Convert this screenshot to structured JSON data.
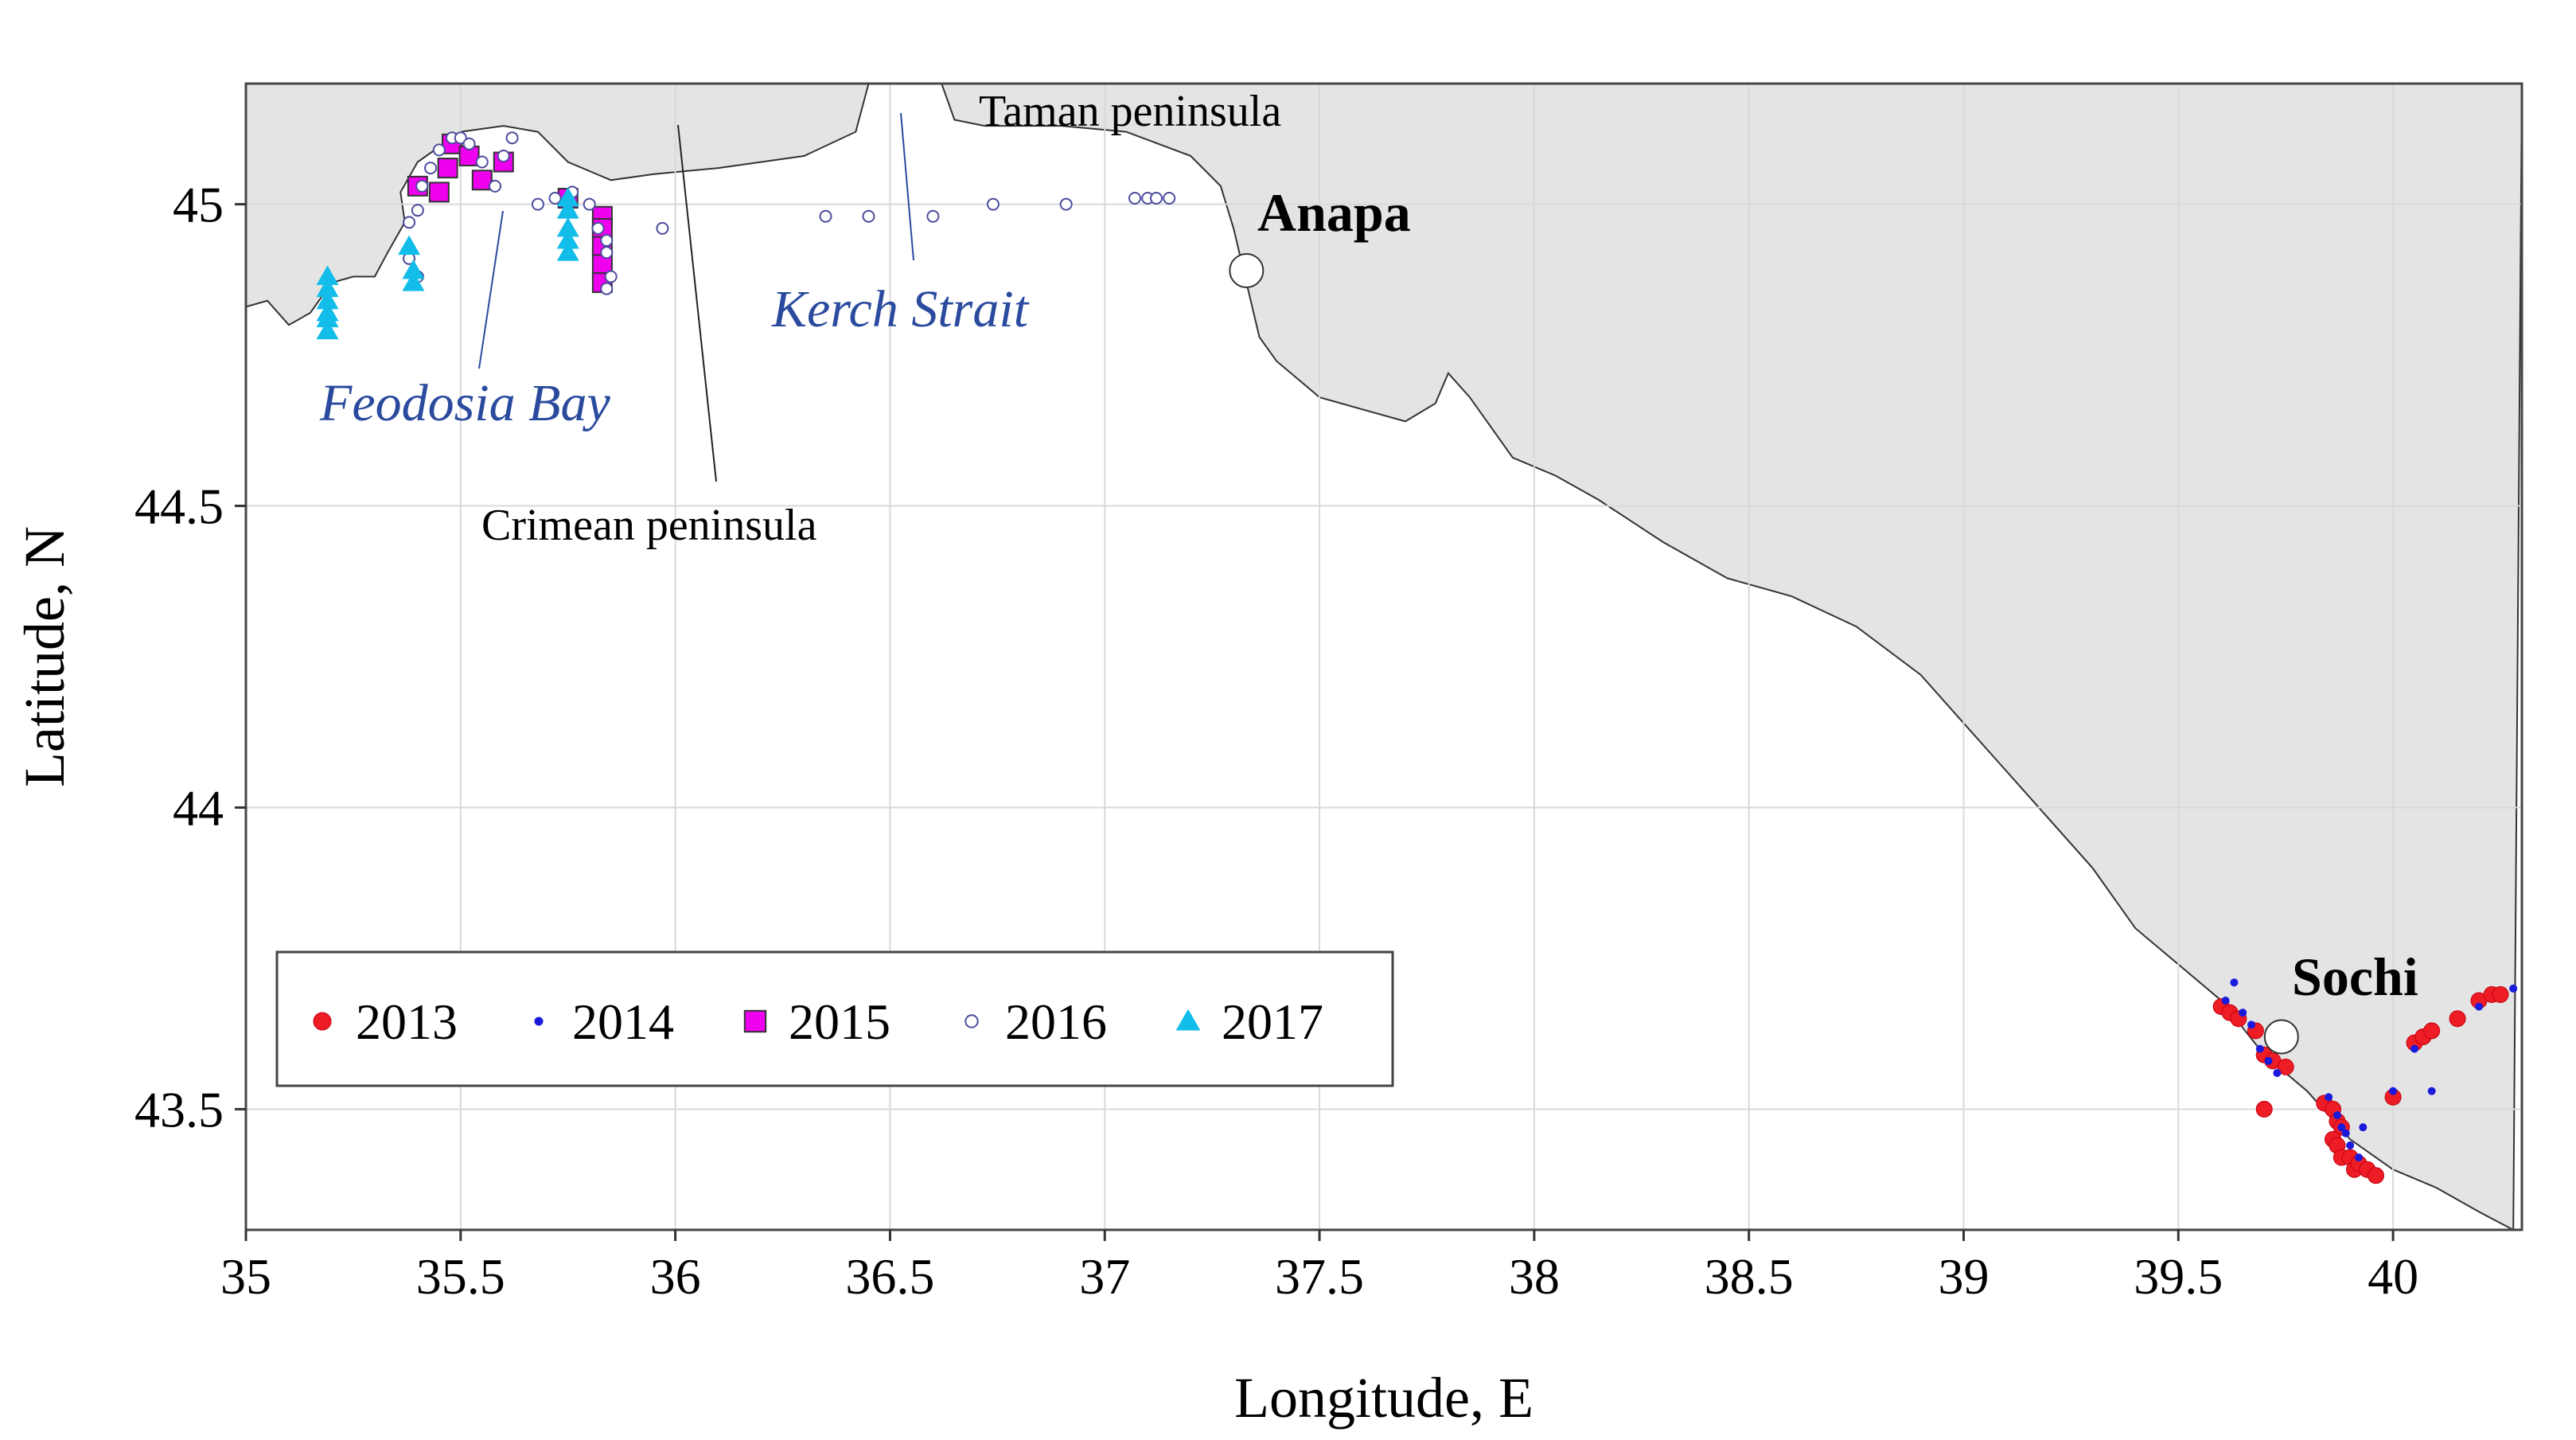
{
  "chart_data": {
    "type": "scatter",
    "xlabel": "Longitude, E",
    "ylabel": "Latitude, N",
    "xlim": [
      35.0,
      40.3
    ],
    "ylim": [
      43.3,
      45.2
    ],
    "xticks": [
      "35",
      "35.5",
      "36",
      "36.5",
      "37",
      "37.5",
      "38",
      "38.5",
      "39",
      "39.5",
      "40"
    ],
    "xtick_values": [
      35,
      35.5,
      36,
      36.5,
      37,
      37.5,
      38,
      38.5,
      39,
      39.5,
      40
    ],
    "yticks": [
      "43.5",
      "44",
      "44.5",
      "45"
    ],
    "ytick_values": [
      43.5,
      44,
      44.5,
      45
    ],
    "grid": true,
    "legend_position": "bottom-left",
    "places": {
      "anapa": "Anapa",
      "sochi": "Sochi",
      "kerch": "Kerch Strait",
      "feodosia": "Feodosia Bay",
      "crimea": "Crimean peninsula",
      "taman": "Taman peninsula"
    },
    "city_markers": [
      {
        "name": "Anapa",
        "lon": 37.33,
        "lat": 44.89
      },
      {
        "name": "Sochi",
        "lon": 39.74,
        "lat": 43.62
      }
    ],
    "coast_upper": [
      [
        35.0,
        44.83
      ],
      [
        35.05,
        44.84
      ],
      [
        35.1,
        44.8
      ],
      [
        35.15,
        44.82
      ],
      [
        35.2,
        44.87
      ],
      [
        35.25,
        44.88
      ],
      [
        35.3,
        44.88
      ],
      [
        35.33,
        44.92
      ],
      [
        35.37,
        44.97
      ],
      [
        35.36,
        45.02
      ],
      [
        35.4,
        45.07
      ],
      [
        35.5,
        45.12
      ],
      [
        35.6,
        45.13
      ],
      [
        35.68,
        45.12
      ],
      [
        35.75,
        45.07
      ],
      [
        35.85,
        45.04
      ],
      [
        35.95,
        45.05
      ],
      [
        36.1,
        45.06
      ],
      [
        36.3,
        45.08
      ],
      [
        36.42,
        45.12
      ],
      [
        36.45,
        45.2
      ]
    ],
    "coast_lower": [
      [
        36.62,
        45.2
      ],
      [
        36.65,
        45.14
      ],
      [
        36.72,
        45.13
      ],
      [
        36.9,
        45.13
      ],
      [
        37.05,
        45.12
      ],
      [
        37.2,
        45.08
      ],
      [
        37.27,
        45.03
      ],
      [
        37.3,
        44.96
      ],
      [
        37.33,
        44.87
      ],
      [
        37.36,
        44.78
      ],
      [
        37.4,
        44.74
      ],
      [
        37.5,
        44.68
      ],
      [
        37.6,
        44.66
      ],
      [
        37.7,
        44.64
      ],
      [
        37.77,
        44.67
      ],
      [
        37.8,
        44.72
      ],
      [
        37.85,
        44.68
      ],
      [
        37.95,
        44.58
      ],
      [
        38.05,
        44.55
      ],
      [
        38.15,
        44.51
      ],
      [
        38.3,
        44.44
      ],
      [
        38.45,
        44.38
      ],
      [
        38.6,
        44.35
      ],
      [
        38.75,
        44.3
      ],
      [
        38.9,
        44.22
      ],
      [
        39.0,
        44.14
      ],
      [
        39.1,
        44.06
      ],
      [
        39.2,
        43.98
      ],
      [
        39.3,
        43.9
      ],
      [
        39.4,
        43.8
      ],
      [
        39.5,
        43.74
      ],
      [
        39.6,
        43.68
      ],
      [
        39.7,
        43.59
      ],
      [
        39.8,
        43.53
      ],
      [
        39.9,
        43.45
      ],
      [
        40.0,
        43.4
      ],
      [
        40.1,
        43.37
      ],
      [
        40.2,
        43.33
      ],
      [
        40.28,
        43.3
      ]
    ],
    "series": [
      {
        "name": "2013",
        "label": "2013",
        "color": "#ee1c25",
        "marker": "circle-filled",
        "lon": [
          39.6,
          39.62,
          39.64,
          39.68,
          39.7,
          39.72,
          39.75,
          39.7,
          39.84,
          39.86,
          39.87,
          39.88,
          39.86,
          39.87,
          39.88,
          39.9,
          39.91,
          39.92,
          39.94,
          39.96,
          40.0,
          40.05,
          40.07,
          40.09,
          40.15,
          40.2,
          40.23,
          40.25
        ],
        "lat": [
          43.67,
          43.66,
          43.65,
          43.63,
          43.59,
          43.58,
          43.57,
          43.5,
          43.51,
          43.5,
          43.48,
          43.47,
          43.45,
          43.44,
          43.42,
          43.42,
          43.4,
          43.41,
          43.4,
          43.39,
          43.52,
          43.61,
          43.62,
          43.63,
          43.65,
          43.68,
          43.69,
          43.69
        ]
      },
      {
        "name": "2014",
        "label": "2014",
        "color": "#1a1adc",
        "marker": "dot",
        "lon": [
          39.61,
          39.63,
          39.65,
          39.67,
          39.69,
          39.71,
          39.73,
          39.85,
          39.87,
          39.88,
          39.89,
          39.9,
          39.92,
          39.93,
          40.0,
          40.05,
          40.09,
          40.2,
          40.28
        ],
        "lat": [
          43.68,
          43.71,
          43.66,
          43.64,
          43.6,
          43.58,
          43.56,
          43.52,
          43.49,
          43.47,
          43.46,
          43.44,
          43.42,
          43.47,
          43.53,
          43.6,
          43.53,
          43.67,
          43.7
        ]
      },
      {
        "name": "2015",
        "label": "2015",
        "color": "#ee00ee",
        "marker": "square",
        "lon": [
          35.4,
          35.45,
          35.47,
          35.48,
          35.52,
          35.55,
          35.6,
          35.75,
          35.83,
          35.83,
          35.83,
          35.83,
          35.83
        ],
        "lat": [
          45.03,
          45.02,
          45.06,
          45.1,
          45.08,
          45.04,
          45.07,
          45.01,
          44.98,
          44.96,
          44.93,
          44.9,
          44.87
        ]
      },
      {
        "name": "2016",
        "label": "2016",
        "color": "#4c4c9e",
        "marker": "circle-open",
        "lon": [
          35.38,
          35.4,
          35.41,
          35.43,
          35.45,
          35.48,
          35.5,
          35.52,
          35.55,
          35.58,
          35.6,
          35.62,
          35.68,
          35.72,
          35.76,
          35.8,
          35.82,
          35.84,
          35.85,
          35.97,
          36.35,
          36.45,
          36.6,
          36.74,
          36.91,
          37.07,
          37.1,
          37.12,
          37.15,
          35.38,
          35.4,
          35.84,
          35.84
        ],
        "lat": [
          44.97,
          44.99,
          45.03,
          45.06,
          45.09,
          45.11,
          45.11,
          45.1,
          45.07,
          45.03,
          45.08,
          45.11,
          45.0,
          45.01,
          45.02,
          45.0,
          44.96,
          44.92,
          44.88,
          44.96,
          44.98,
          44.98,
          44.98,
          45.0,
          45.0,
          45.01,
          45.01,
          45.01,
          45.01,
          44.91,
          44.88,
          44.94,
          44.86
        ]
      },
      {
        "name": "2017",
        "label": "2017",
        "color": "#13bdea",
        "marker": "triangle",
        "lon": [
          35.19,
          35.19,
          35.19,
          35.19,
          35.19,
          35.19,
          35.38,
          35.39,
          35.39,
          35.75,
          35.75,
          35.75,
          35.75,
          35.75
        ],
        "lat": [
          44.88,
          44.86,
          44.84,
          44.82,
          44.81,
          44.79,
          44.93,
          44.89,
          44.87,
          45.01,
          44.99,
          44.96,
          44.94,
          44.92
        ]
      }
    ]
  }
}
